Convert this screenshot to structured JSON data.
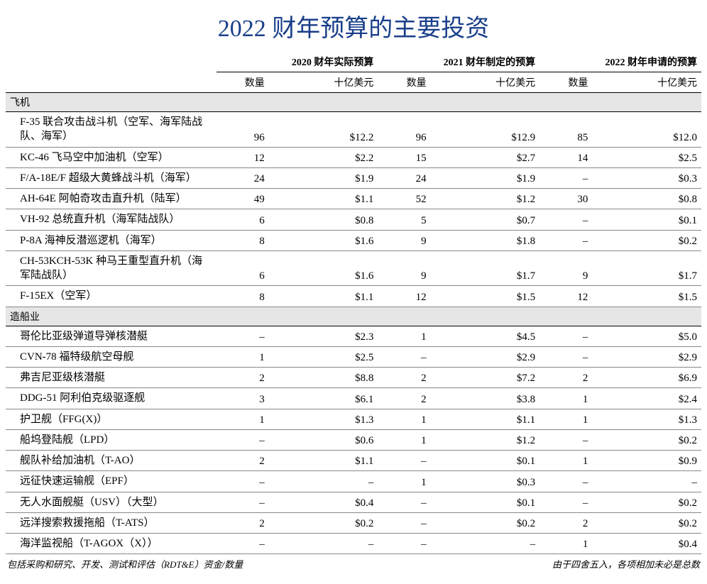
{
  "title": "2022 财年预算的主要投资",
  "title_color": "#1a3f8a",
  "year_headers": [
    "2020 财年实际预算",
    "2021 财年制定的预算",
    "2022 财年申请的预算"
  ],
  "sub_headers": {
    "qty": "数量",
    "amt": "十亿美元"
  },
  "sections": [
    {
      "name": "飞机",
      "rows": [
        {
          "label": "F-35 联合攻击战斗机（空军、海军陆战队、海军）",
          "q1": "96",
          "a1": "$12.2",
          "q2": "96",
          "a2": "$12.9",
          "q3": "85",
          "a3": "$12.0"
        },
        {
          "label": "KC-46 飞马空中加油机（空军）",
          "q1": "12",
          "a1": "$2.2",
          "q2": "15",
          "a2": "$2.7",
          "q3": "14",
          "a3": "$2.5"
        },
        {
          "label": "F/A-18E/F 超级大黄蜂战斗机（海军）",
          "q1": "24",
          "a1": "$1.9",
          "q2": "24",
          "a2": "$1.9",
          "q3": "–",
          "a3": "$0.3"
        },
        {
          "label": "AH-64E 阿帕奇攻击直升机（陆军）",
          "q1": "49",
          "a1": "$1.1",
          "q2": "52",
          "a2": "$1.2",
          "q3": "30",
          "a3": "$0.8"
        },
        {
          "label": "VH-92 总统直升机（海军陆战队）",
          "q1": "6",
          "a1": "$0.8",
          "q2": "5",
          "a2": "$0.7",
          "q3": "–",
          "a3": "$0.1"
        },
        {
          "label": "P-8A 海神反潜巡逻机（海军）",
          "q1": "8",
          "a1": "$1.6",
          "q2": "9",
          "a2": "$1.8",
          "q3": "–",
          "a3": "$0.2"
        },
        {
          "label": "CH-53KCH-53K 种马王重型直升机（海军陆战队）",
          "q1": "6",
          "a1": "$1.6",
          "q2": "9",
          "a2": "$1.7",
          "q3": "9",
          "a3": "$1.7"
        },
        {
          "label": "F-15EX（空军）",
          "q1": "8",
          "a1": "$1.1",
          "q2": "12",
          "a2": "$1.5",
          "q3": "12",
          "a3": "$1.5"
        }
      ]
    },
    {
      "name": "造船业",
      "rows": [
        {
          "label": "哥伦比亚级弹道导弹核潜艇",
          "q1": "–",
          "a1": "$2.3",
          "q2": "1",
          "a2": "$4.5",
          "q3": "–",
          "a3": "$5.0"
        },
        {
          "label": "CVN-78 福特级航空母舰",
          "q1": "1",
          "a1": "$2.5",
          "q2": "–",
          "a2": "$2.9",
          "q3": "–",
          "a3": "$2.9"
        },
        {
          "label": "弗吉尼亚级核潜艇",
          "q1": "2",
          "a1": "$8.8",
          "q2": "2",
          "a2": "$7.2",
          "q3": "2",
          "a3": "$6.9"
        },
        {
          "label": "DDG-51 阿利伯克级驱逐舰",
          "q1": "3",
          "a1": "$6.1",
          "q2": "2",
          "a2": "$3.8",
          "q3": "1",
          "a3": "$2.4"
        },
        {
          "label": "护卫舰（FFG(X)）",
          "q1": "1",
          "a1": "$1.3",
          "q2": "1",
          "a2": "$1.1",
          "q3": "1",
          "a3": "$1.3"
        },
        {
          "label": "船坞登陆舰（LPD）",
          "q1": "–",
          "a1": "$0.6",
          "q2": "1",
          "a2": "$1.2",
          "q3": "–",
          "a3": "$0.2"
        },
        {
          "label": "舰队补给加油机（T-AO）",
          "q1": "2",
          "a1": "$1.1",
          "q2": "–",
          "a2": "$0.1",
          "q3": "1",
          "a3": "$0.9"
        },
        {
          "label": "远征快速运输舰（EPF）",
          "q1": "–",
          "a1": "–",
          "q2": "1",
          "a2": "$0.3",
          "q3": "–",
          "a3": "–"
        },
        {
          "label": "无人水面舰艇（USV）（大型）",
          "q1": "–",
          "a1": "$0.4",
          "q2": "–",
          "a2": "$0.1",
          "q3": "–",
          "a3": "$0.2"
        },
        {
          "label": "远洋搜索救援拖船（T-ATS）",
          "q1": "2",
          "a1": "$0.2",
          "q2": "–",
          "a2": "$0.2",
          "q3": "2",
          "a3": "$0.2"
        },
        {
          "label": "海洋监视船（T-AGOX（X））",
          "q1": "–",
          "a1": "–",
          "q2": "–",
          "a2": "–",
          "q3": "1",
          "a3": "$0.4"
        }
      ]
    }
  ],
  "footnote_left": "包括采购和研究、开发、测试和评估（RDT&E）资金/数量",
  "footnote_right": "由于四舍五入，各项相加未必是总数",
  "colors": {
    "section_bg": "#e6e6e6",
    "row_border": "#888888",
    "heavy_border": "#000000"
  }
}
